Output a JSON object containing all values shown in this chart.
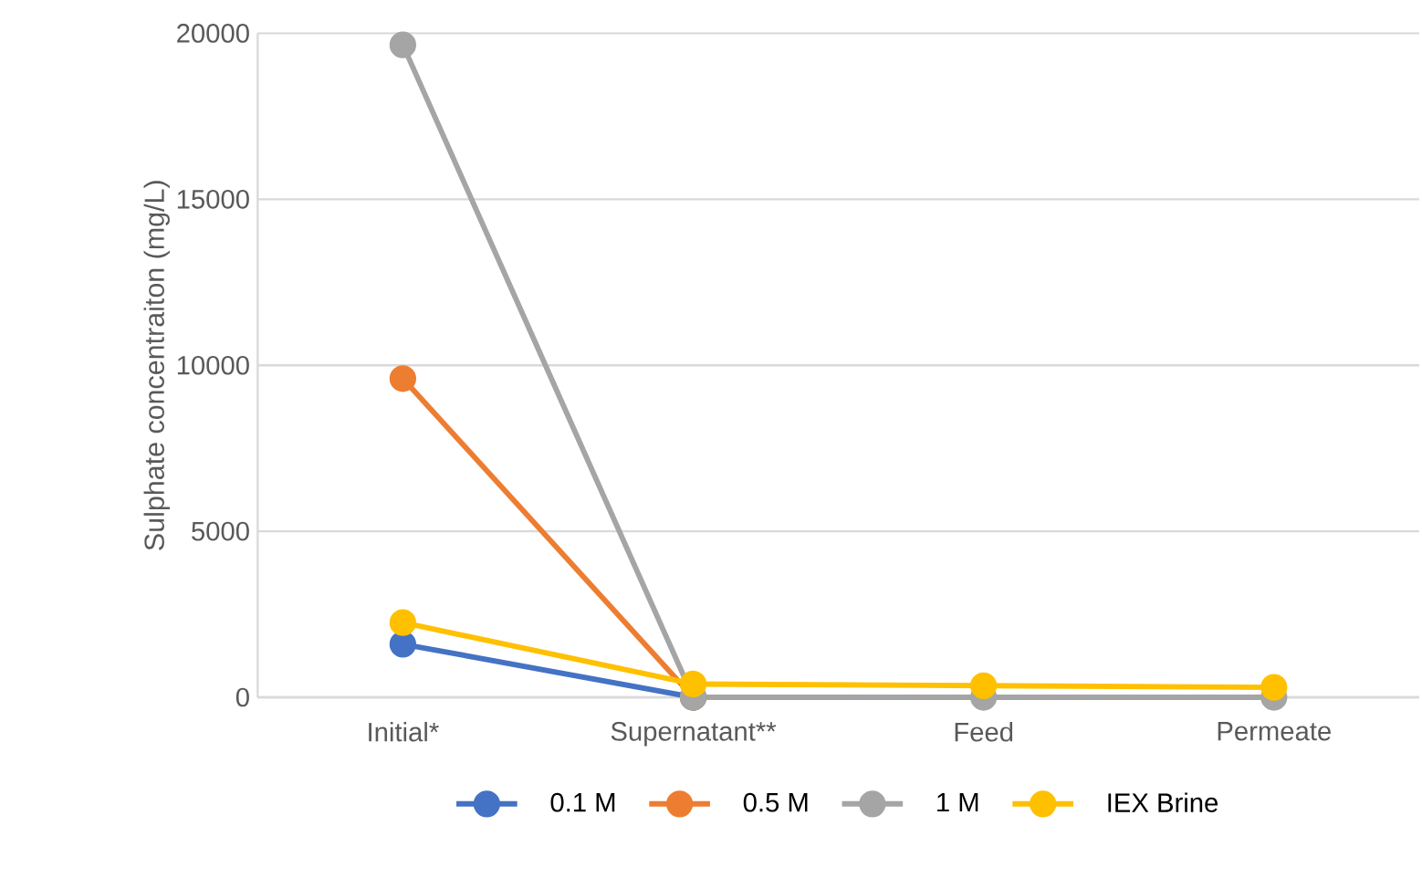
{
  "chart_data": {
    "type": "line",
    "ylabel": "Sulphate concentraiton (mg/L)",
    "categories": [
      "Initial*",
      "Supernatant**",
      "Feed",
      "Permeate"
    ],
    "series": [
      {
        "name": "0.1 M",
        "color": "#4472c4",
        "values": [
          1600,
          0,
          null,
          null
        ]
      },
      {
        "name": "0.5 M",
        "color": "#ed7d31",
        "values": [
          9600,
          0,
          null,
          null
        ]
      },
      {
        "name": "1 M",
        "color": "#a5a5a5",
        "values": [
          19650,
          0,
          0,
          0
        ]
      },
      {
        "name": "IEX Brine",
        "color": "#ffc000",
        "values": [
          2250,
          400,
          350,
          300
        ]
      }
    ],
    "ylim": [
      0,
      20000
    ],
    "yticks": [
      0,
      5000,
      10000,
      15000,
      20000
    ],
    "grid": "y",
    "legend": "bottom",
    "marker": "circle",
    "line_style": "solid"
  }
}
